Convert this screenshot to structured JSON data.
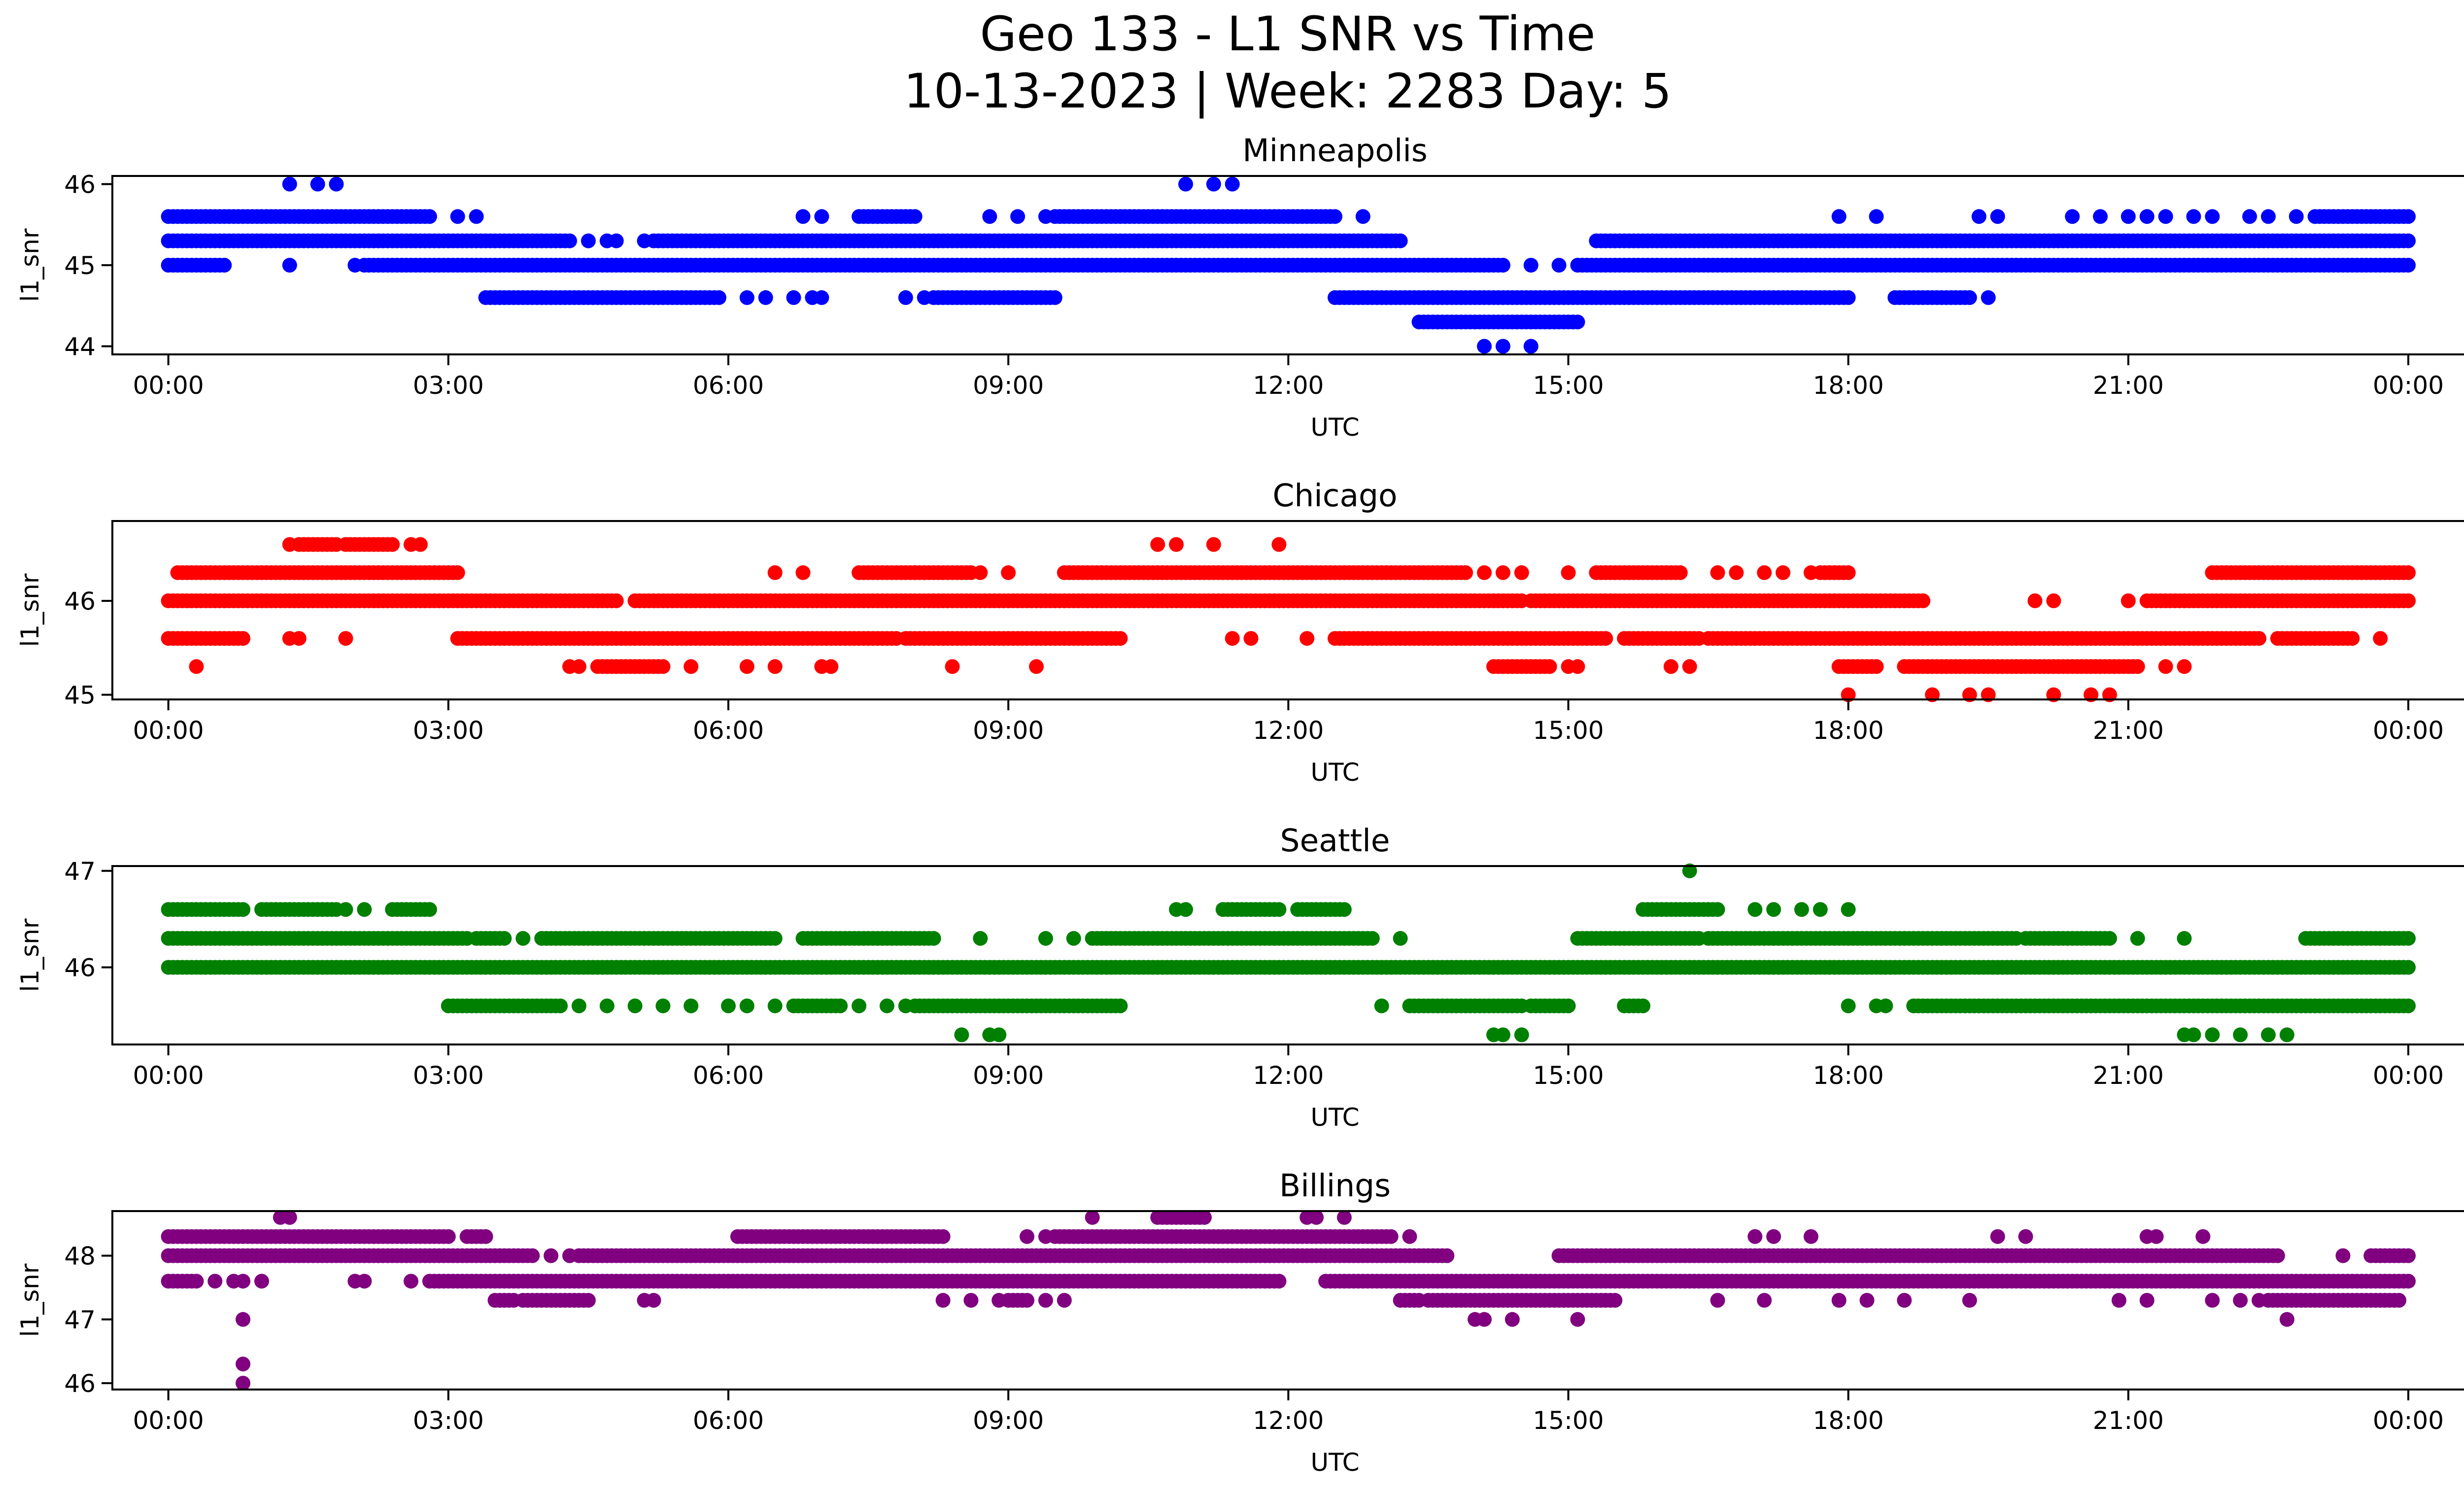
{
  "figure": {
    "title_line1": "Geo 133 - L1 SNR vs Time",
    "title_line2": "10-13-2023 | Week: 2283 Day: 5"
  },
  "chart_data": [
    {
      "type": "scatter",
      "title": "Minneapolis",
      "xlabel": "UTC",
      "ylabel": "l1_snr",
      "color": "#0000ff",
      "x_unit": "hours UTC",
      "xlim": [
        -0.6,
        25.6
      ],
      "ylim": [
        43.9,
        46.1
      ],
      "xticks": [
        "00:00",
        "03:00",
        "06:00",
        "09:00",
        "12:00",
        "15:00",
        "18:00",
        "21:00",
        "00:00"
      ],
      "yticks": [
        44,
        45,
        46
      ],
      "segments": [
        {
          "y": 46.0,
          "x": [
            1.3,
            1.6,
            1.8,
            10.9,
            11.2,
            11.4
          ]
        },
        {
          "y": 45.6,
          "from": 0.0,
          "to": 2.8
        },
        {
          "y": 45.6,
          "x": [
            3.1,
            3.3,
            6.8,
            7.0
          ]
        },
        {
          "y": 45.6,
          "from": 7.4,
          "to": 8.0
        },
        {
          "y": 45.6,
          "x": [
            8.8,
            9.1,
            9.4
          ]
        },
        {
          "y": 45.6,
          "from": 9.5,
          "to": 12.5
        },
        {
          "y": 45.6,
          "x": [
            12.8,
            17.9,
            18.3,
            19.4,
            19.6,
            20.4,
            20.7,
            21.0,
            21.2,
            21.4,
            21.7,
            21.9,
            22.3,
            22.5,
            22.8
          ]
        },
        {
          "y": 45.6,
          "from": 23.0,
          "to": 24.0
        },
        {
          "y": 45.3,
          "from": 0.0,
          "to": 4.3
        },
        {
          "y": 45.3,
          "x": [
            4.5,
            4.7,
            4.8,
            5.1
          ]
        },
        {
          "y": 45.3,
          "from": 5.2,
          "to": 13.2
        },
        {
          "y": 45.3,
          "from": 15.3,
          "to": 24.0
        },
        {
          "y": 45.0,
          "from": 0.0,
          "to": 0.6
        },
        {
          "y": 45.0,
          "x": [
            1.3,
            2.0
          ]
        },
        {
          "y": 45.0,
          "from": 2.1,
          "to": 14.3
        },
        {
          "y": 45.0,
          "x": [
            14.6,
            14.9
          ]
        },
        {
          "y": 45.0,
          "from": 15.1,
          "to": 24.0
        },
        {
          "y": 44.6,
          "from": 3.4,
          "to": 5.9
        },
        {
          "y": 44.6,
          "x": [
            6.2,
            6.4,
            6.7,
            6.9,
            7.0,
            7.9,
            8.1
          ]
        },
        {
          "y": 44.6,
          "from": 8.2,
          "to": 9.5
        },
        {
          "y": 44.6,
          "from": 12.5,
          "to": 18.0
        },
        {
          "y": 44.6,
          "from": 18.5,
          "to": 19.3
        },
        {
          "y": 44.6,
          "x": [
            19.5
          ]
        },
        {
          "y": 44.3,
          "from": 13.4,
          "to": 15.1
        },
        {
          "y": 44.0,
          "x": [
            14.1,
            14.3,
            14.6
          ]
        }
      ]
    },
    {
      "type": "scatter",
      "title": "Chicago",
      "xlabel": "UTC",
      "ylabel": "l1_snr",
      "color": "#ff0000",
      "x_unit": "hours UTC",
      "xlim": [
        -0.6,
        25.6
      ],
      "ylim": [
        44.95,
        46.85
      ],
      "xticks": [
        "00:00",
        "03:00",
        "06:00",
        "09:00",
        "12:00",
        "15:00",
        "18:00",
        "21:00",
        "00:00"
      ],
      "yticks": [
        45,
        46
      ],
      "segments": [
        {
          "y": 46.6,
          "x": [
            1.3,
            2.6,
            2.7,
            10.6,
            10.8,
            11.2,
            11.9
          ]
        },
        {
          "y": 46.6,
          "from": 1.4,
          "to": 1.8
        },
        {
          "y": 46.6,
          "from": 1.9,
          "to": 2.4
        },
        {
          "y": 46.3,
          "from": 0.1,
          "to": 3.1
        },
        {
          "y": 46.3,
          "x": [
            6.5,
            6.8,
            8.0,
            8.1,
            8.7,
            9.0
          ]
        },
        {
          "y": 46.3,
          "from": 7.4,
          "to": 8.6
        },
        {
          "y": 46.3,
          "from": 9.6,
          "to": 13.9
        },
        {
          "y": 46.3,
          "x": [
            14.1,
            14.3,
            14.5,
            15.0
          ]
        },
        {
          "y": 46.3,
          "from": 15.3,
          "to": 16.2
        },
        {
          "y": 46.3,
          "x": [
            16.6,
            16.8,
            17.1,
            17.3,
            17.6
          ]
        },
        {
          "y": 46.3,
          "from": 17.7,
          "to": 18.0
        },
        {
          "y": 46.3,
          "from": 21.9,
          "to": 24.0
        },
        {
          "y": 46.0,
          "from": 0.0,
          "to": 4.8
        },
        {
          "y": 46.0,
          "from": 5.0,
          "to": 14.5
        },
        {
          "y": 46.0,
          "from": 14.6,
          "to": 18.8
        },
        {
          "y": 46.0,
          "x": [
            20.0,
            20.2,
            21.0
          ]
        },
        {
          "y": 46.0,
          "from": 21.2,
          "to": 24.0
        },
        {
          "y": 45.6,
          "from": 0.0,
          "to": 0.8
        },
        {
          "y": 45.6,
          "x": [
            1.3,
            1.4,
            1.9
          ]
        },
        {
          "y": 45.6,
          "from": 3.1,
          "to": 7.8
        },
        {
          "y": 45.6,
          "from": 7.9,
          "to": 10.2
        },
        {
          "y": 45.6,
          "x": [
            11.4,
            11.6,
            12.2
          ]
        },
        {
          "y": 45.6,
          "from": 12.5,
          "to": 15.4
        },
        {
          "y": 45.6,
          "from": 15.6,
          "to": 16.4
        },
        {
          "y": 45.6,
          "from": 16.5,
          "to": 22.4
        },
        {
          "y": 45.6,
          "from": 22.6,
          "to": 23.4
        },
        {
          "y": 45.6,
          "x": [
            23.7
          ]
        },
        {
          "y": 45.3,
          "x": [
            0.3,
            4.3,
            4.4,
            5.6,
            6.2,
            6.5,
            7.0,
            7.1,
            8.4,
            9.3
          ]
        },
        {
          "y": 45.3,
          "from": 4.6,
          "to": 5.3
        },
        {
          "y": 45.3,
          "from": 14.2,
          "to": 14.8
        },
        {
          "y": 45.3,
          "x": [
            15.0,
            15.1,
            16.1,
            16.3
          ]
        },
        {
          "y": 45.3,
          "from": 17.9,
          "to": 18.3
        },
        {
          "y": 45.3,
          "from": 18.6,
          "to": 21.1
        },
        {
          "y": 45.3,
          "x": [
            21.4,
            21.6
          ]
        },
        {
          "y": 45.0,
          "x": [
            18.0,
            18.9,
            19.3,
            19.5,
            20.2,
            20.6,
            20.8
          ]
        }
      ]
    },
    {
      "type": "scatter",
      "title": "Seattle",
      "xlabel": "UTC",
      "ylabel": "l1_snr",
      "color": "#008000",
      "x_unit": "hours UTC",
      "xlim": [
        -0.6,
        25.6
      ],
      "ylim": [
        45.2,
        47.05
      ],
      "xticks": [
        "00:00",
        "03:00",
        "06:00",
        "09:00",
        "12:00",
        "15:00",
        "18:00",
        "21:00",
        "00:00"
      ],
      "yticks": [
        46,
        47
      ],
      "segments": [
        {
          "y": 47.0,
          "x": [
            16.3
          ]
        },
        {
          "y": 46.6,
          "from": 0.0,
          "to": 0.8
        },
        {
          "y": 46.6,
          "from": 1.0,
          "to": 1.8
        },
        {
          "y": 46.6,
          "x": [
            1.9,
            2.1
          ]
        },
        {
          "y": 46.6,
          "from": 2.4,
          "to": 2.8
        },
        {
          "y": 46.6,
          "x": [
            10.8,
            10.9
          ]
        },
        {
          "y": 46.6,
          "from": 11.3,
          "to": 11.9
        },
        {
          "y": 46.6,
          "from": 12.1,
          "to": 12.6
        },
        {
          "y": 46.6,
          "from": 15.8,
          "to": 16.6
        },
        {
          "y": 46.6,
          "x": [
            17.0,
            17.2,
            17.5,
            17.7,
            18.0
          ]
        },
        {
          "y": 46.3,
          "from": 0.0,
          "to": 3.2
        },
        {
          "y": 46.3,
          "from": 3.3,
          "to": 3.6
        },
        {
          "y": 46.3,
          "x": [
            3.8
          ]
        },
        {
          "y": 46.3,
          "from": 4.0,
          "to": 6.5
        },
        {
          "y": 46.3,
          "from": 6.8,
          "to": 8.2
        },
        {
          "y": 46.3,
          "x": [
            8.7,
            9.4,
            9.7
          ]
        },
        {
          "y": 46.3,
          "from": 9.9,
          "to": 12.9
        },
        {
          "y": 46.3,
          "x": [
            13.2
          ]
        },
        {
          "y": 46.3,
          "from": 15.1,
          "to": 16.4
        },
        {
          "y": 46.3,
          "from": 16.5,
          "to": 19.8
        },
        {
          "y": 46.3,
          "from": 19.9,
          "to": 20.8
        },
        {
          "y": 46.3,
          "x": [
            21.1,
            21.6
          ]
        },
        {
          "y": 46.3,
          "from": 22.9,
          "to": 24.0
        },
        {
          "y": 46.0,
          "from": 0.0,
          "to": 24.0
        },
        {
          "y": 45.6,
          "from": 3.0,
          "to": 4.2
        },
        {
          "y": 45.6,
          "x": [
            4.4,
            4.7,
            5.0,
            5.3,
            5.6,
            6.0,
            6.2,
            6.5
          ]
        },
        {
          "y": 45.6,
          "from": 6.7,
          "to": 7.2
        },
        {
          "y": 45.6,
          "x": [
            7.4,
            7.7,
            7.9
          ]
        },
        {
          "y": 45.6,
          "from": 8.0,
          "to": 10.2
        },
        {
          "y": 45.6,
          "x": [
            13.0
          ]
        },
        {
          "y": 45.6,
          "from": 13.3,
          "to": 14.5
        },
        {
          "y": 45.6,
          "from": 14.6,
          "to": 15.0
        },
        {
          "y": 45.6,
          "from": 15.6,
          "to": 15.8
        },
        {
          "y": 45.6,
          "x": [
            18.0,
            18.3,
            18.4
          ]
        },
        {
          "y": 45.6,
          "from": 18.7,
          "to": 24.0
        },
        {
          "y": 45.3,
          "x": [
            8.5,
            8.8,
            8.9,
            14.2,
            14.3,
            14.5,
            21.6,
            21.7,
            21.9,
            22.2,
            22.5,
            22.7
          ]
        }
      ]
    },
    {
      "type": "scatter",
      "title": "Billings",
      "xlabel": "UTC",
      "ylabel": "l1_snr",
      "color": "#800080",
      "x_unit": "hours UTC",
      "xlim": [
        -0.6,
        25.6
      ],
      "ylim": [
        45.9,
        48.7
      ],
      "xticks": [
        "00:00",
        "03:00",
        "06:00",
        "09:00",
        "12:00",
        "15:00",
        "18:00",
        "21:00",
        "00:00"
      ],
      "yticks": [
        46,
        47,
        48
      ],
      "segments": [
        {
          "y": 48.6,
          "x": [
            1.2,
            1.3,
            9.9,
            12.2,
            12.3,
            12.6
          ]
        },
        {
          "y": 48.6,
          "from": 10.6,
          "to": 11.1
        },
        {
          "y": 48.3,
          "from": 0.0,
          "to": 3.0
        },
        {
          "y": 48.3,
          "from": 3.2,
          "to": 3.4
        },
        {
          "y": 48.3,
          "from": 6.1,
          "to": 8.3
        },
        {
          "y": 48.3,
          "x": [
            9.2,
            9.4
          ]
        },
        {
          "y": 48.3,
          "from": 9.5,
          "to": 13.1
        },
        {
          "y": 48.3,
          "x": [
            13.3
          ]
        },
        {
          "y": 48.3,
          "x": [
            17.0,
            17.2,
            17.6,
            19.6,
            19.9,
            21.2,
            21.3,
            21.8
          ]
        },
        {
          "y": 48.0,
          "from": 0.0,
          "to": 3.9
        },
        {
          "y": 48.0,
          "x": [
            4.1,
            4.3
          ]
        },
        {
          "y": 48.0,
          "from": 4.4,
          "to": 13.7
        },
        {
          "y": 48.0,
          "from": 14.9,
          "to": 22.6
        },
        {
          "y": 48.0,
          "x": [
            23.3
          ]
        },
        {
          "y": 48.0,
          "from": 23.6,
          "to": 24.0
        },
        {
          "y": 47.6,
          "from": 0.0,
          "to": 0.3
        },
        {
          "y": 47.6,
          "x": [
            0.5,
            0.7,
            0.8,
            1.0,
            2.0,
            2.1,
            2.6
          ]
        },
        {
          "y": 47.6,
          "from": 2.8,
          "to": 11.9
        },
        {
          "y": 47.6,
          "from": 12.4,
          "to": 24.0
        },
        {
          "y": 47.3,
          "from": 3.5,
          "to": 3.7
        },
        {
          "y": 47.3,
          "from": 3.8,
          "to": 4.5
        },
        {
          "y": 47.3,
          "x": [
            5.1,
            5.2,
            8.3,
            8.6,
            8.9,
            9.4,
            9.6
          ]
        },
        {
          "y": 47.3,
          "from": 9.0,
          "to": 9.2
        },
        {
          "y": 47.3,
          "from": 13.2,
          "to": 13.4
        },
        {
          "y": 47.3,
          "from": 13.5,
          "to": 15.5
        },
        {
          "y": 47.3,
          "x": [
            16.6,
            17.1,
            17.9,
            18.2,
            18.6,
            19.3,
            20.9,
            21.2,
            21.9,
            22.2,
            22.4
          ]
        },
        {
          "y": 47.3,
          "from": 22.5,
          "to": 23.9
        },
        {
          "y": 47.0,
          "x": [
            0.8,
            14.0,
            14.1,
            14.4,
            15.1,
            22.7
          ]
        },
        {
          "y": 46.3,
          "x": [
            0.8
          ]
        },
        {
          "y": 46.0,
          "x": [
            0.8
          ]
        }
      ]
    }
  ]
}
